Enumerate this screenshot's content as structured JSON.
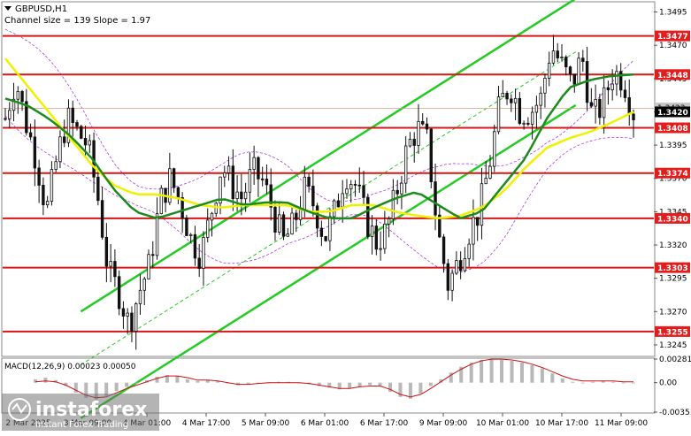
{
  "header": {
    "symbol": "GBPUSD,H1",
    "channel_info": "Channel size = 139 Slope = 1.97"
  },
  "macd": {
    "label": "MACD(12,26,9) 0.00023 0.00050",
    "ticks": [
      "0.00281",
      "0.00",
      "-0.00351"
    ]
  },
  "watermark": {
    "brand": "instaforex",
    "tagline": "Instant Forex Trading"
  },
  "chart_data": {
    "type": "candlestick",
    "ylim": [
      1.3237,
      1.3502
    ],
    "y_ticks": [
      "1.3495",
      "1.3470",
      "1.3445",
      "1.3420",
      "1.3395",
      "1.3370",
      "1.3345",
      "1.3320",
      "1.3295",
      "1.3270",
      "1.3245"
    ],
    "x_labels": [
      "2 Mar 2025",
      "3 Mar 09:00",
      "4 Mar 01:00",
      "4 Mar 17:00",
      "5 Mar 09:00",
      "6 Mar 01:00",
      "6 Mar 17:00",
      "9 Mar 09:00",
      "10 Mar 01:00",
      "10 Mar 17:00",
      "11 Mar 09:00"
    ],
    "levels": [
      {
        "label": "1.3477",
        "value": 1.3477
      },
      {
        "label": "1.3448",
        "value": 1.3448
      },
      {
        "label": "1.3408",
        "value": 1.3408
      },
      {
        "label": "1.3374",
        "value": 1.3374
      },
      {
        "label": "1.3340",
        "value": 1.334
      },
      {
        "label": "1.3303",
        "value": 1.3303
      },
      {
        "label": "1.3255",
        "value": 1.3255
      }
    ],
    "current_price": "1.3420",
    "bid_label": "1.3423",
    "close_path": [
      1.3415,
      1.3445,
      1.3412,
      1.3385,
      1.3345,
      1.3385,
      1.3415,
      1.3405,
      1.3395,
      1.3355,
      1.33,
      1.3285,
      1.326,
      1.3285,
      1.3305,
      1.3352,
      1.337,
      1.3352,
      1.3325,
      1.3312,
      1.3345,
      1.338,
      1.3365,
      1.3355,
      1.3375,
      1.3368,
      1.3345,
      1.3322,
      1.3335,
      1.3362,
      1.335,
      1.3325,
      1.3345,
      1.3375,
      1.3365,
      1.334,
      1.3322,
      1.333,
      1.336,
      1.3392,
      1.3408,
      1.3397,
      1.333,
      1.329,
      1.3308,
      1.333,
      1.3345,
      1.338,
      1.3425,
      1.344,
      1.342,
      1.342,
      1.343,
      1.347,
      1.3455,
      1.344,
      1.3462,
      1.3415,
      1.3425,
      1.345,
      1.3445,
      1.342
    ],
    "ma_green": [
      1.343,
      1.3425,
      1.3415,
      1.3402,
      1.3385,
      1.3362,
      1.3345,
      1.334,
      1.3345,
      1.335,
      1.3355,
      1.335,
      1.3352,
      1.3352,
      1.3345,
      1.334,
      1.334,
      1.3348,
      1.3355,
      1.336,
      1.335,
      1.334,
      1.3345,
      1.3365,
      1.3385,
      1.3415,
      1.3438,
      1.3444,
      1.3447,
      1.3448
    ],
    "ma_yellow": [
      1.346,
      1.344,
      1.342,
      1.34,
      1.338,
      1.3365,
      1.3358,
      1.3358,
      1.3355,
      1.335,
      1.3348,
      1.335,
      1.335,
      1.335,
      1.3345,
      1.3345,
      1.335,
      1.335,
      1.3345,
      1.3342,
      1.334,
      1.3342,
      1.3348,
      1.336,
      1.3378,
      1.3393,
      1.34,
      1.3405,
      1.3412,
      1.342
    ],
    "channel": {
      "upper": [
        1.327,
        1.3505
      ],
      "middle": [
        1.323,
        1.3465
      ],
      "lower": [
        1.319,
        1.3425
      ]
    },
    "macd_hist": [
      0.0004,
      0.0006,
      0.0003,
      -0.0004,
      -0.0012,
      -0.0018,
      -0.002,
      -0.0016,
      -0.001,
      -0.0005,
      -0.0001,
      0.0003,
      0.0007,
      0.0009,
      0.0008,
      0.0004,
      0.0002,
      0.0003,
      0.0002,
      -0.0001,
      -0.0003,
      -0.0002,
      -0.0001,
      0.0,
      0.0001,
      0.0001,
      0.0,
      -0.0002,
      -0.0004,
      -0.0006,
      -0.0008,
      -0.0007,
      -0.0005,
      -0.0003,
      -0.0004,
      -0.0011,
      -0.0017,
      -0.0019,
      -0.0013,
      -0.0004,
      0.0004,
      0.0012,
      0.0019,
      0.0024,
      0.0027,
      0.0028,
      0.0027,
      0.0026,
      0.0024,
      0.0021,
      0.0017,
      0.0011,
      0.0005,
      0.0001,
      0.0,
      0.0001,
      0.0002,
      0.0001,
      0.0,
      0.0
    ],
    "macd_signal": [
      0.0001,
      0.0002,
      0.0001,
      -0.0003,
      -0.0009,
      -0.0015,
      -0.0018,
      -0.0017,
      -0.0012,
      -0.0007,
      -0.0003,
      0.0001,
      0.0005,
      0.0008,
      0.0008,
      0.0006,
      0.0003,
      0.0003,
      0.0002,
      0.0,
      -0.0002,
      -0.0002,
      -0.0001,
      0.0,
      0.0,
      0.0,
      0.0,
      -0.0001,
      -0.0003,
      -0.0005,
      -0.0007,
      -0.0007,
      -0.0005,
      -0.0004,
      -0.0004,
      -0.0008,
      -0.0014,
      -0.0017,
      -0.0014,
      -0.0007,
      0.0001,
      0.0009,
      0.0016,
      0.0022,
      0.0026,
      0.0028,
      0.0028,
      0.0027,
      0.0025,
      0.0022,
      0.0018,
      0.0013,
      0.0008,
      0.0004,
      0.0002,
      0.0002,
      0.0002,
      0.0002,
      0.0001,
      0.0001
    ],
    "colors": {
      "level_line": "#d61818",
      "level_tag": "#e51c1c",
      "ma_green": "#1e8a1e",
      "ma_yellow": "#f0f000",
      "channel": "#22cc22",
      "candle": "#101010",
      "macd_hist": "#b8b8b8",
      "macd_signal": "#cc1111",
      "bands": "#a020f0"
    }
  }
}
